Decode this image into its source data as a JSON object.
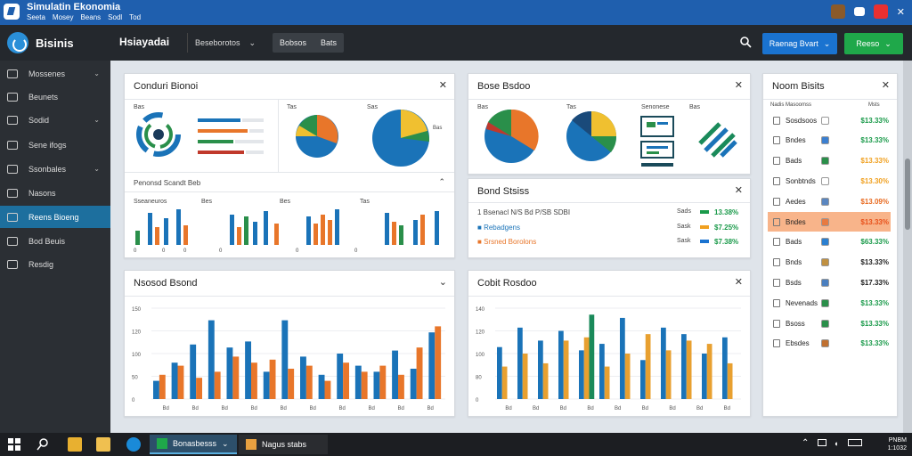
{
  "window": {
    "title": "Simulatin Ekonomia",
    "menus": [
      "Seeta",
      "Mosey",
      "Beans",
      "Sodl",
      "Tod"
    ]
  },
  "appbar": {
    "brand": "Bisinis",
    "page_heading": "Hsiayadai",
    "dropdown_label": "Beseborotos",
    "tabs": [
      "Bobsos",
      "Bats"
    ],
    "primary_button": "Raenag Bvart",
    "secondary_button": "Reeso"
  },
  "sidebar": {
    "items": [
      {
        "label": "Mossenes",
        "chevron": true
      },
      {
        "label": "Beunets",
        "chevron": false
      },
      {
        "label": "Sodid",
        "chevron": true
      },
      {
        "label": "Sene ifogs",
        "chevron": false
      },
      {
        "label": "Ssonbales",
        "chevron": true
      },
      {
        "label": "Nasons",
        "chevron": false
      },
      {
        "label": "Reens Bioeng",
        "chevron": false,
        "active": true
      },
      {
        "label": "Bod Beuis",
        "chevron": false
      },
      {
        "label": "Resdig",
        "chevron": false
      }
    ]
  },
  "panels": {
    "p1": {
      "title": "Conduri Bionoi",
      "sub_title": "Penonsd Scandt Beb",
      "labels": [
        "Bas",
        "Tas",
        "Sas"
      ],
      "bar_labels": [
        "Sseaneuros",
        "Bes",
        "Bes",
        "Tas"
      ]
    },
    "p2": {
      "title": "Bose Bsdoo",
      "labels": [
        "Bas",
        "Tas",
        "Senonese",
        "Bas"
      ]
    },
    "p3": {
      "title": "Bond Stsiss",
      "summary": "1 Bsenacl N/S Bd P/SB SDBI",
      "rows": [
        {
          "label": "Rebadgens",
          "tag": "Sads",
          "value": "13.38%",
          "color": "#1a9a4a"
        },
        {
          "label": "Srsned Borolons",
          "tag": "Sask",
          "value": "$7.25%",
          "color": "#f0a020"
        },
        {
          "label": "",
          "tag": "Sask",
          "value": "$7.38%",
          "color": "#1a73d0"
        }
      ]
    },
    "p4": {
      "title": "Nsosod Bsond"
    },
    "p5": {
      "title": "Cobit Rosdoo"
    },
    "p6": {
      "title": "Noom Bisits",
      "header_left": "Nadis Masoomss",
      "header_right": "Msts",
      "items": [
        {
          "label": "Sosdsoos",
          "value": "$13.33%",
          "chip": "#ffffff",
          "color": "#1a9a4a"
        },
        {
          "label": "Bndes",
          "value": "$13.33%",
          "chip": "#3b7fd0",
          "color": "#1a9a4a"
        },
        {
          "label": "Bads",
          "value": "$13.33%",
          "chip": "#2a8f4a",
          "color": "#f0a020"
        },
        {
          "label": "Sonbtnds",
          "value": "$13.30%",
          "chip": "#ffffff",
          "color": "#f0a020"
        },
        {
          "label": "Aedes",
          "value": "$13.09%",
          "chip": "#5a86c0",
          "color": "#e86a20"
        },
        {
          "label": "Bndes",
          "value": "$13.33%",
          "chip": "#e87a40",
          "color": "#e8501a",
          "highlight": true
        },
        {
          "label": "Bads",
          "value": "$63.33%",
          "chip": "#2a7fd0",
          "color": "#1a9a4a"
        },
        {
          "label": "Bnds",
          "value": "$13.33%",
          "chip": "#c09040",
          "color": "#222222"
        },
        {
          "label": "Bsds",
          "value": "$17.33%",
          "chip": "#4a7fc0",
          "color": "#222222"
        },
        {
          "label": "Nevenads",
          "value": "$13.33%",
          "chip": "#2a8f4a",
          "color": "#1a9a4a"
        },
        {
          "label": "Bsoss",
          "value": "$13.33%",
          "chip": "#2a8f4a",
          "color": "#1a9a4a"
        },
        {
          "label": "Ebsdes",
          "value": "$13.33%",
          "chip": "#c07030",
          "color": "#1a9a4a"
        }
      ]
    }
  },
  "taskbar": {
    "apps": [
      "Bonasbesss",
      "Nagus stabs"
    ],
    "clock_line1": "PNBM",
    "clock_line2": "1:1032"
  },
  "chart_data": [
    {
      "type": "bar",
      "title": "Nsosod Bsond",
      "ylabel": "",
      "ytick_labels": [
        "150",
        "120",
        "100",
        "50",
        "0"
      ],
      "xtick_labels": [
        "Bd",
        "Bd",
        "Bd",
        "Bd",
        "Bd",
        "Bd",
        "Bd",
        "Bd",
        "Bd",
        "Bd"
      ],
      "series": [
        {
          "color": "#1a73b8",
          "values": [
            30,
            60,
            90,
            130,
            85,
            95,
            45,
            130,
            70,
            40,
            75,
            55,
            45,
            80,
            50,
            110
          ]
        },
        {
          "color": "#e8762a",
          "values": [
            40,
            55,
            35,
            45,
            70,
            60,
            65,
            50,
            55,
            30,
            60,
            45,
            55,
            40,
            85,
            120
          ]
        }
      ]
    },
    {
      "type": "bar",
      "title": "Cobit Rosdoo",
      "ytick_labels": [
        "140",
        "120",
        "100",
        "80",
        "0"
      ],
      "xtick_labels": [
        "Bd",
        "Bd",
        "Bd",
        "Bd",
        "Bd",
        "Bd",
        "Bd",
        "Bd",
        "Bd"
      ],
      "series": [
        {
          "color": "#1a73b8",
          "values": [
            80,
            110,
            90,
            105,
            75,
            85,
            125,
            60,
            110,
            100,
            70,
            95
          ]
        },
        {
          "color": "#e8a030",
          "values": [
            50,
            70,
            55,
            90,
            95,
            50,
            70,
            100,
            75,
            90,
            85,
            55
          ]
        },
        {
          "color": "#1a8a5a",
          "values": [
            0,
            0,
            0,
            0,
            130,
            0,
            0,
            0,
            0,
            0,
            0,
            0
          ]
        }
      ]
    }
  ]
}
